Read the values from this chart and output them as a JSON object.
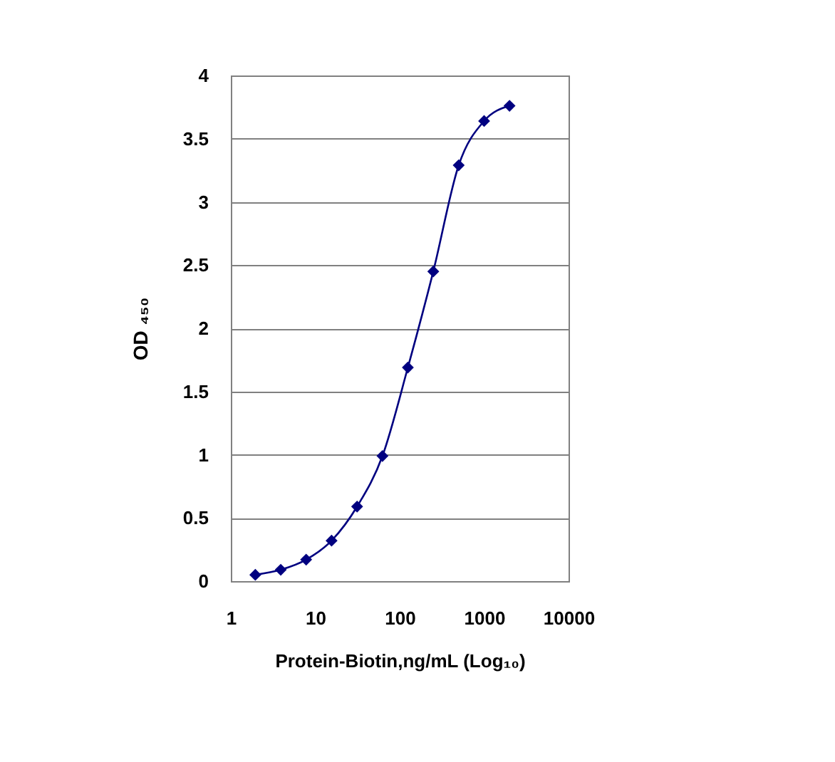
{
  "chart_data": {
    "type": "line",
    "xlabel": "Protein-Biotin,ng/mL (Log₁₀)",
    "ylabel": "OD ₄₅₀",
    "x": [
      1.95,
      3.9,
      7.8,
      15.6,
      31.3,
      62.5,
      125,
      250,
      500,
      1000,
      2000
    ],
    "series": [
      {
        "color": "#000080",
        "values": [
          0.05,
          0.09,
          0.17,
          0.32,
          0.59,
          0.99,
          1.69,
          2.45,
          3.29,
          3.64,
          3.76
        ]
      }
    ],
    "xlim": [
      1,
      10000
    ],
    "xticks": [
      1,
      10,
      100,
      1000,
      10000
    ],
    "ylim": [
      0,
      4
    ],
    "yticks": [
      0,
      0.5,
      1,
      1.5,
      2,
      2.5,
      3,
      3.5,
      4
    ],
    "log": "x",
    "grid": "y",
    "marker": "diamond",
    "line_style": "solid"
  }
}
